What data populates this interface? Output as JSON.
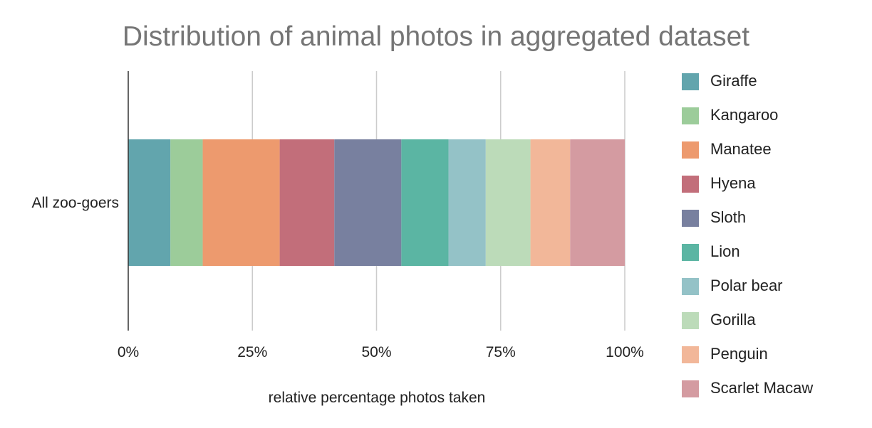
{
  "chart_data": {
    "type": "bar",
    "orientation": "horizontal",
    "stacked": true,
    "stack_mode": "percent",
    "title": "Distribution of animal photos in aggregated dataset",
    "xlabel": "relative percentage photos taken",
    "ylabel": "",
    "categories": [
      "All zoo-goers"
    ],
    "xlim": [
      0,
      100
    ],
    "x_ticks": [
      "0%",
      "25%",
      "50%",
      "75%",
      "100%"
    ],
    "grid": true,
    "legend_position": "right",
    "series": [
      {
        "name": "Giraffe",
        "color": "#62a5ad",
        "values": [
          8.5
        ]
      },
      {
        "name": "Kangaroo",
        "color": "#9ccc9a",
        "values": [
          6.5
        ]
      },
      {
        "name": "Manatee",
        "color": "#ed9a6e",
        "values": [
          15.5
        ]
      },
      {
        "name": "Hyena",
        "color": "#c26e7a",
        "values": [
          11
        ]
      },
      {
        "name": "Sloth",
        "color": "#78809f",
        "values": [
          13.5
        ]
      },
      {
        "name": "Lion",
        "color": "#5bb5a3",
        "values": [
          9.5
        ]
      },
      {
        "name": "Polar bear",
        "color": "#94c2c7",
        "values": [
          7.5
        ]
      },
      {
        "name": "Gorilla",
        "color": "#bcdbb9",
        "values": [
          9
        ]
      },
      {
        "name": "Penguin",
        "color": "#f2b799",
        "values": [
          8
        ]
      },
      {
        "name": "Scarlet Macaw",
        "color": "#d49ba1",
        "values": [
          11
        ]
      }
    ]
  }
}
